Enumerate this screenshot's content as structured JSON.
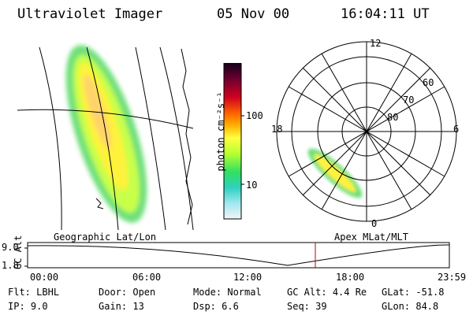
{
  "header": {
    "title": "Ultraviolet Imager",
    "date": "05 Nov 00",
    "time": "16:04:11 UT"
  },
  "colorbar": {
    "unit_label": "photon cm⁻²s⁻¹",
    "ticks": [
      "100",
      "10"
    ]
  },
  "polar_plot": {
    "mlt_labels": [
      "12",
      "18",
      "6",
      "0"
    ],
    "lat_labels": [
      "60",
      "70",
      "80"
    ]
  },
  "labels": {
    "left_frame": "Geographic Lat/Lon",
    "right_frame": "Apex MLat/MLT"
  },
  "altitude_plot": {
    "ylabel": "GC Alt",
    "yticks": [
      "9.0",
      "1.8"
    ],
    "xticks": [
      "00:00",
      "06:00",
      "12:00",
      "18:00",
      "23:59"
    ],
    "marker_color": "#c00000"
  },
  "info": {
    "row1": [
      {
        "k": "Flt:",
        "v": "LBHL"
      },
      {
        "k": "Door:",
        "v": "Open"
      },
      {
        "k": "Mode:",
        "v": "Normal"
      },
      {
        "k": "GC Alt:",
        "v": "4.4 Re"
      },
      {
        "k": "GLat:",
        "v": "-51.8"
      }
    ],
    "row2": [
      {
        "k": "IP:",
        "v": "9.0"
      },
      {
        "k": "Gain:",
        "v": "13"
      },
      {
        "k": "Dsp:",
        "v": "6.6"
      },
      {
        "k": "Seq:",
        "v": "39"
      },
      {
        "k": "GLon:",
        "v": "84.8"
      }
    ]
  }
}
